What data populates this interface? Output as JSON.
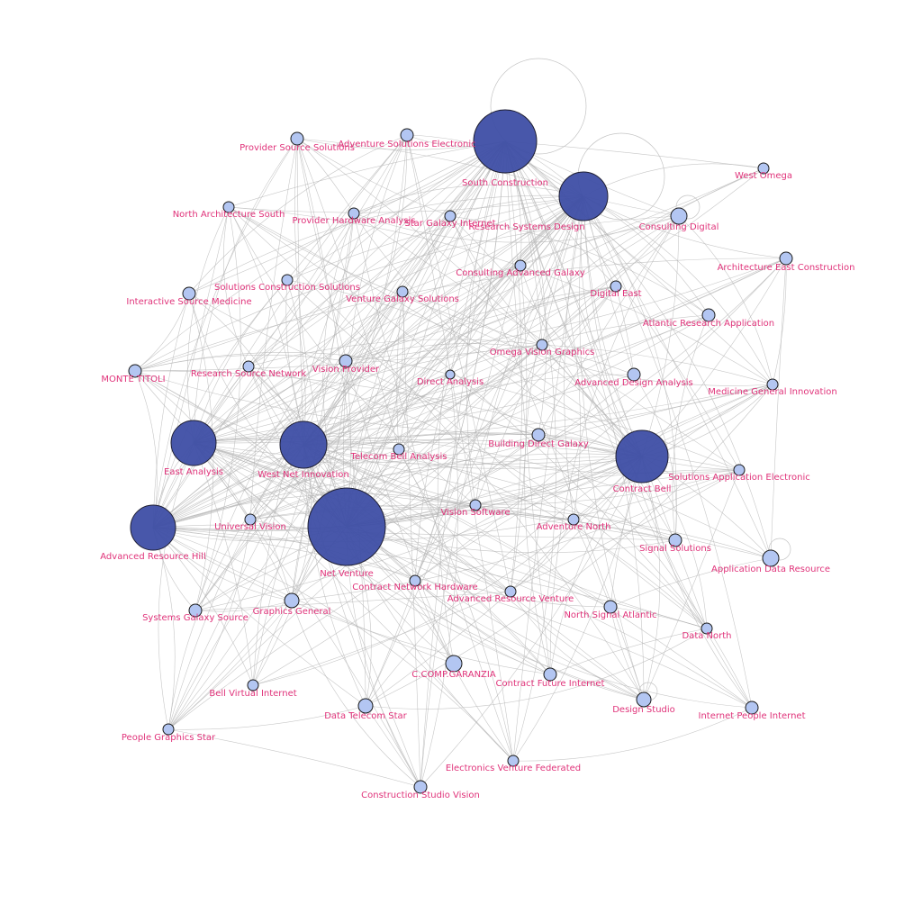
{
  "graph": {
    "node_colors": {
      "hub": "#3f4fa6",
      "regular": "#b3c6f2",
      "label": "#e0337a",
      "edge": "#b4b4b4"
    },
    "nodes": [
      {
        "id": "south-construction",
        "label": "South Construction",
        "hub": true
      },
      {
        "id": "research-systems-design",
        "label": "Research Systems Design",
        "hub": true
      },
      {
        "id": "east-analysis",
        "label": "East Analysis",
        "hub": true
      },
      {
        "id": "west-net-innovation",
        "label": "West Net Innovation",
        "hub": true
      },
      {
        "id": "contract-bell",
        "label": "Contract Bell",
        "hub": true
      },
      {
        "id": "advanced-resource-hill",
        "label": "Advanced Resource Hill",
        "hub": true
      },
      {
        "id": "net-venture",
        "label": "Net Venture",
        "hub": true
      },
      {
        "id": "provider-source-solutions",
        "label": "Provider Source Solutions",
        "hub": false
      },
      {
        "id": "adventure-solutions-electronic",
        "label": "Adventure Solutions Electronic",
        "hub": false
      },
      {
        "id": "west-omega",
        "label": "West Omega",
        "hub": false
      },
      {
        "id": "north-architecture-south",
        "label": "North Architecture South",
        "hub": false
      },
      {
        "id": "provider-hardware-analysis",
        "label": "Provider Hardware Analysis",
        "hub": false
      },
      {
        "id": "star-galaxy-internet",
        "label": "Star Galaxy Internet",
        "hub": false
      },
      {
        "id": "consulting-digital",
        "label": "Consulting Digital",
        "hub": false
      },
      {
        "id": "architecture-east-construction",
        "label": "Architecture East Construction",
        "hub": false
      },
      {
        "id": "consulting-advanced-galaxy",
        "label": "Consulting Advanced Galaxy",
        "hub": false
      },
      {
        "id": "solutions-construction-solutions",
        "label": "Solutions Construction Solutions",
        "hub": false
      },
      {
        "id": "digital-east",
        "label": "Digital East",
        "hub": false
      },
      {
        "id": "interactive-source-medicine",
        "label": "Interactive Source Medicine",
        "hub": false
      },
      {
        "id": "venture-galaxy-solutions",
        "label": "Venture Galaxy Solutions",
        "hub": false
      },
      {
        "id": "atlantic-research-application",
        "label": "Atlantic Research Application",
        "hub": false
      },
      {
        "id": "omega-vision-graphics",
        "label": "Omega Vision Graphics",
        "hub": false
      },
      {
        "id": "monte-titoli",
        "label": "MONTE TITOLI",
        "hub": false
      },
      {
        "id": "research-source-network",
        "label": "Research Source Network",
        "hub": false
      },
      {
        "id": "vision-provider",
        "label": "Vision Provider",
        "hub": false
      },
      {
        "id": "direct-analysis",
        "label": "Direct Analysis",
        "hub": false
      },
      {
        "id": "advanced-design-analysis",
        "label": "Advanced Design Analysis",
        "hub": false
      },
      {
        "id": "medicine-general-innovation",
        "label": "Medicine General Innovation",
        "hub": false
      },
      {
        "id": "building-direct-galaxy",
        "label": "Building Direct Galaxy",
        "hub": false
      },
      {
        "id": "telecom-bell-analysis",
        "label": "Telecom Bell Analysis",
        "hub": false
      },
      {
        "id": "solutions-application-electronic",
        "label": "Solutions Application Electronic",
        "hub": false
      },
      {
        "id": "universal-vision",
        "label": "Universal Vision",
        "hub": false
      },
      {
        "id": "vision-software",
        "label": "Vision Software",
        "hub": false
      },
      {
        "id": "adventure-north",
        "label": "Adventure North",
        "hub": false
      },
      {
        "id": "signal-solutions",
        "label": "Signal Solutions",
        "hub": false
      },
      {
        "id": "application-data-resource",
        "label": "Application Data Resource",
        "hub": false
      },
      {
        "id": "contract-network-hardware",
        "label": "Contract Network Hardware",
        "hub": false
      },
      {
        "id": "advanced-resource-venture",
        "label": "Advanced Resource Venture",
        "hub": false
      },
      {
        "id": "graphics-general",
        "label": "Graphics General",
        "hub": false
      },
      {
        "id": "systems-galaxy-source",
        "label": "Systems Galaxy Source",
        "hub": false
      },
      {
        "id": "north-signal-atlantic",
        "label": "North Signal Atlantic",
        "hub": false
      },
      {
        "id": "data-north",
        "label": "Data North",
        "hub": false
      },
      {
        "id": "c-comp-garanzia",
        "label": "C.COMP.GARANZIA",
        "hub": false
      },
      {
        "id": "contract-future-internet",
        "label": "Contract Future Internet",
        "hub": false
      },
      {
        "id": "bell-virtual-internet",
        "label": "Bell Virtual Internet",
        "hub": false
      },
      {
        "id": "data-telecom-star",
        "label": "Data Telecom Star",
        "hub": false
      },
      {
        "id": "design-studio",
        "label": "Design Studio",
        "hub": false
      },
      {
        "id": "internet-people-internet",
        "label": "Internet People Internet",
        "hub": false
      },
      {
        "id": "people-graphics-star",
        "label": "People Graphics Star",
        "hub": false
      },
      {
        "id": "electronics-venture-federated",
        "label": "Electronics Venture Federated",
        "hub": false
      },
      {
        "id": "construction-studio-vision",
        "label": "Construction Studio Vision",
        "hub": false
      }
    ]
  }
}
